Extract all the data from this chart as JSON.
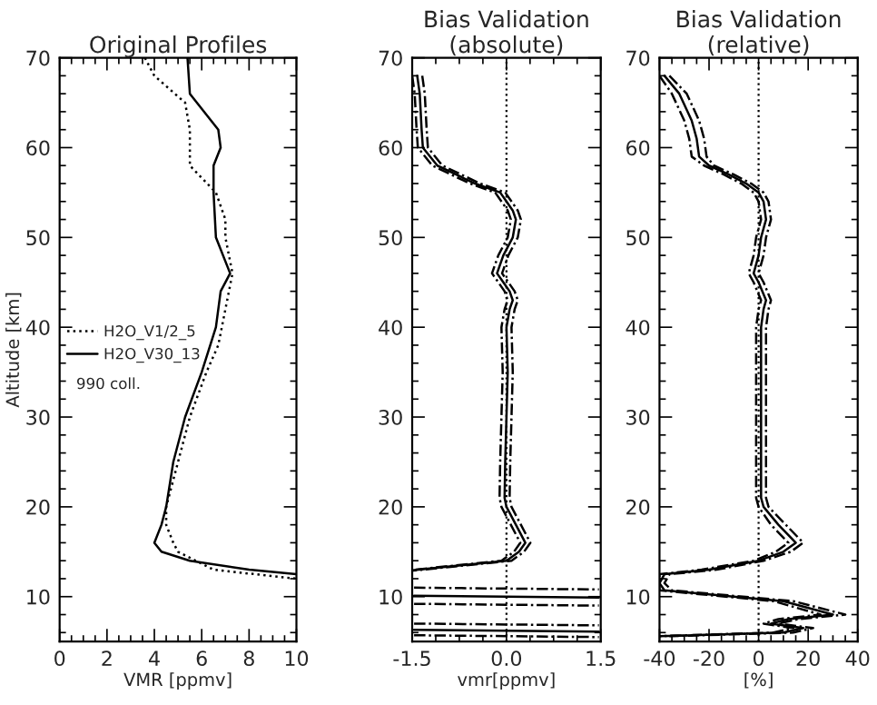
{
  "chart_data": [
    {
      "type": "line",
      "title": "Original Profiles",
      "xlabel": "VMR [ppmv]",
      "ylabel": "Altitude [km]",
      "orientation": "horizontal",
      "xlim": [
        0,
        10
      ],
      "xticks": [
        0,
        2,
        4,
        6,
        8,
        10
      ],
      "ylim": [
        5,
        70
      ],
      "yticks": [
        10,
        20,
        30,
        40,
        50,
        60,
        70
      ],
      "grid": false,
      "legend": "left",
      "annotations": [
        "990 coll."
      ],
      "series": [
        {
          "name": "H2O_V1/2_5",
          "color": "#000000",
          "line_style": "dotted",
          "x": [
            70,
            68,
            65,
            62,
            60,
            58,
            55,
            52,
            50,
            46,
            42,
            38,
            35,
            30,
            25,
            20,
            18,
            16,
            15,
            13,
            12
          ],
          "values": [
            3.6,
            4.0,
            5.3,
            5.5,
            5.5,
            5.5,
            6.6,
            7.0,
            7.0,
            7.3,
            7.0,
            6.7,
            6.2,
            5.5,
            5.0,
            4.5,
            4.5,
            4.8,
            5.0,
            6.5,
            10
          ]
        },
        {
          "name": "H2O_V30_13",
          "color": "#000000",
          "line_style": "solid",
          "x": [
            70,
            66,
            62,
            60,
            58,
            55,
            50,
            46,
            44,
            40,
            35,
            30,
            25,
            20,
            18,
            16,
            15,
            14,
            13,
            12.5
          ],
          "values": [
            5.4,
            5.5,
            6.7,
            6.8,
            6.5,
            6.5,
            6.6,
            7.2,
            6.8,
            6.6,
            6.0,
            5.3,
            4.8,
            4.5,
            4.3,
            4.0,
            4.3,
            5.5,
            8.0,
            10
          ]
        }
      ]
    },
    {
      "type": "line",
      "title": "Bias Validation\n(absolute)",
      "xlabel": "vmr[ppmv]",
      "orientation": "horizontal",
      "xlim": [
        -1.5,
        1.5
      ],
      "xticks": [
        -1.5,
        {
          "value": 0,
          "label": "0.0"
        },
        1.5
      ],
      "ylim": [
        5,
        70
      ],
      "yticks": [
        10,
        20,
        30,
        40,
        50,
        60,
        70
      ],
      "grid": false,
      "ref_lines": [
        {
          "axis": "x",
          "value": 0,
          "line_style": "dotted",
          "color": "#000000"
        }
      ],
      "series": [
        {
          "color": "#000000",
          "line_style": "solid",
          "x": [
            68,
            66,
            62,
            60,
            58,
            56,
            55,
            54,
            53,
            52,
            50,
            48,
            46,
            45,
            44,
            43,
            42,
            40,
            35,
            30,
            25,
            21,
            20,
            18,
            16,
            15,
            14,
            13,
            12.9,
            null,
            10.1,
            9.9,
            null,
            6.3,
            6.1
          ],
          "values": [
            -1.42,
            -1.38,
            -1.35,
            -1.33,
            -1.1,
            -0.5,
            -0.1,
            0.0,
            0.1,
            0.15,
            0.1,
            -0.05,
            -0.15,
            -0.05,
            0.05,
            0.1,
            0.05,
            0.0,
            0.02,
            0.0,
            -0.02,
            -0.03,
            0.0,
            0.15,
            0.3,
            0.2,
            0.0,
            -1.4,
            -1.5,
            null,
            -1.47,
            1.47,
            null,
            -1.47,
            1.47
          ]
        },
        {
          "color": "#000000",
          "line_style": "dashed",
          "x": [
            68,
            66,
            62,
            60,
            58,
            56,
            55,
            54,
            53,
            52,
            50,
            48,
            46,
            45,
            44,
            43,
            42,
            40,
            35,
            30,
            25,
            21,
            20,
            18,
            16,
            15,
            14,
            13,
            12.9,
            null,
            9.2,
            9.0,
            null,
            5.7,
            5.5
          ],
          "values": [
            -1.5,
            -1.46,
            -1.43,
            -1.41,
            -1.18,
            -0.58,
            -0.18,
            -0.08,
            0.02,
            0.07,
            0.02,
            -0.13,
            -0.23,
            -0.13,
            -0.03,
            0.02,
            -0.03,
            -0.08,
            -0.06,
            -0.08,
            -0.1,
            -0.11,
            -0.08,
            0.07,
            0.22,
            0.12,
            -0.08,
            -1.47,
            -1.5,
            null,
            -1.47,
            1.47,
            null,
            -1.47,
            1.47
          ]
        },
        {
          "color": "#000000",
          "line_style": "dashed",
          "x": [
            68,
            66,
            62,
            60,
            58,
            56,
            55,
            54,
            53,
            52,
            50,
            48,
            46,
            45,
            44,
            43,
            42,
            40,
            35,
            30,
            25,
            21,
            20,
            18,
            16,
            15,
            14,
            13,
            12.9,
            null,
            11.0,
            10.8,
            null,
            7.0,
            6.8
          ],
          "values": [
            -1.34,
            -1.3,
            -1.27,
            -1.25,
            -1.02,
            -0.42,
            -0.02,
            0.08,
            0.18,
            0.23,
            0.18,
            0.03,
            -0.07,
            0.03,
            0.13,
            0.18,
            0.13,
            0.08,
            0.1,
            0.08,
            0.06,
            0.05,
            0.08,
            0.23,
            0.38,
            0.28,
            0.08,
            -1.33,
            -1.5,
            null,
            -1.47,
            1.47,
            null,
            -1.47,
            1.47
          ]
        }
      ]
    },
    {
      "type": "line",
      "title": "Bias Validation\n(relative)",
      "xlabel": "[%]",
      "orientation": "horizontal",
      "xlim": [
        -40,
        40
      ],
      "xticks": [
        -40,
        -20,
        0,
        20,
        40
      ],
      "ylim": [
        5,
        70
      ],
      "yticks": [
        10,
        20,
        30,
        40,
        50,
        60,
        70
      ],
      "grid": false,
      "ref_lines": [
        {
          "axis": "x",
          "value": 0,
          "line_style": "dotted",
          "color": "#000000"
        }
      ],
      "series": [
        {
          "color": "#000000",
          "line_style": "solid",
          "x": [
            68,
            66,
            63,
            61,
            59,
            58,
            57,
            56,
            55,
            54,
            52,
            50,
            48,
            46,
            45,
            43,
            42,
            40,
            35,
            30,
            25,
            21,
            20,
            18,
            16,
            15,
            14,
            13,
            12.5,
            11.5,
            10.7,
            9.5,
            8,
            7.5,
            7,
            6.5,
            6,
            5.6
          ],
          "values": [
            -38,
            -32,
            -27,
            -25,
            -24,
            -20,
            -12,
            -5,
            0,
            2,
            3,
            1,
            0,
            -2,
            0,
            3,
            2,
            1,
            1,
            1,
            1,
            1,
            2,
            8,
            15,
            10,
            0,
            -20,
            -38,
            -40,
            -38,
            10,
            30,
            12,
            5,
            18,
            10,
            -40
          ]
        },
        {
          "color": "#000000",
          "line_style": "dashed",
          "x": [
            68,
            66,
            63,
            61,
            59,
            58,
            57,
            56,
            55,
            54,
            52,
            50,
            48,
            46,
            45,
            43,
            42,
            40,
            35,
            30,
            25,
            21,
            20,
            18,
            16,
            15,
            14,
            13,
            12.5,
            11.5,
            10.7,
            9.5,
            8,
            7.5,
            7,
            6.5,
            6,
            5.6
          ],
          "values": [
            -40,
            -35,
            -30,
            -28,
            -27,
            -22,
            -14,
            -7,
            -2,
            0,
            1,
            -1,
            -2,
            -4,
            -2,
            1,
            0,
            -1,
            -1,
            -1,
            -1,
            -1,
            0,
            5,
            12,
            7,
            -2,
            -23,
            -40,
            -40,
            -40,
            6,
            25,
            8,
            2,
            14,
            6,
            -40
          ]
        },
        {
          "color": "#000000",
          "line_style": "dashed",
          "x": [
            68,
            66,
            63,
            61,
            59,
            58,
            57,
            56,
            55,
            54,
            52,
            50,
            48,
            46,
            45,
            43,
            42,
            40,
            35,
            30,
            25,
            21,
            20,
            18,
            16,
            15,
            14,
            13,
            12.5,
            11.5,
            10.7,
            9.5,
            8,
            7.5,
            7,
            6.5,
            6,
            5.6
          ],
          "values": [
            -36,
            -29,
            -24,
            -22,
            -21,
            -18,
            -10,
            -3,
            2,
            4,
            5,
            3,
            2,
            0,
            2,
            5,
            4,
            3,
            3,
            3,
            3,
            3,
            4,
            11,
            18,
            13,
            2,
            -17,
            -36,
            -38,
            -35,
            14,
            35,
            16,
            8,
            22,
            14,
            -36
          ]
        }
      ]
    }
  ]
}
